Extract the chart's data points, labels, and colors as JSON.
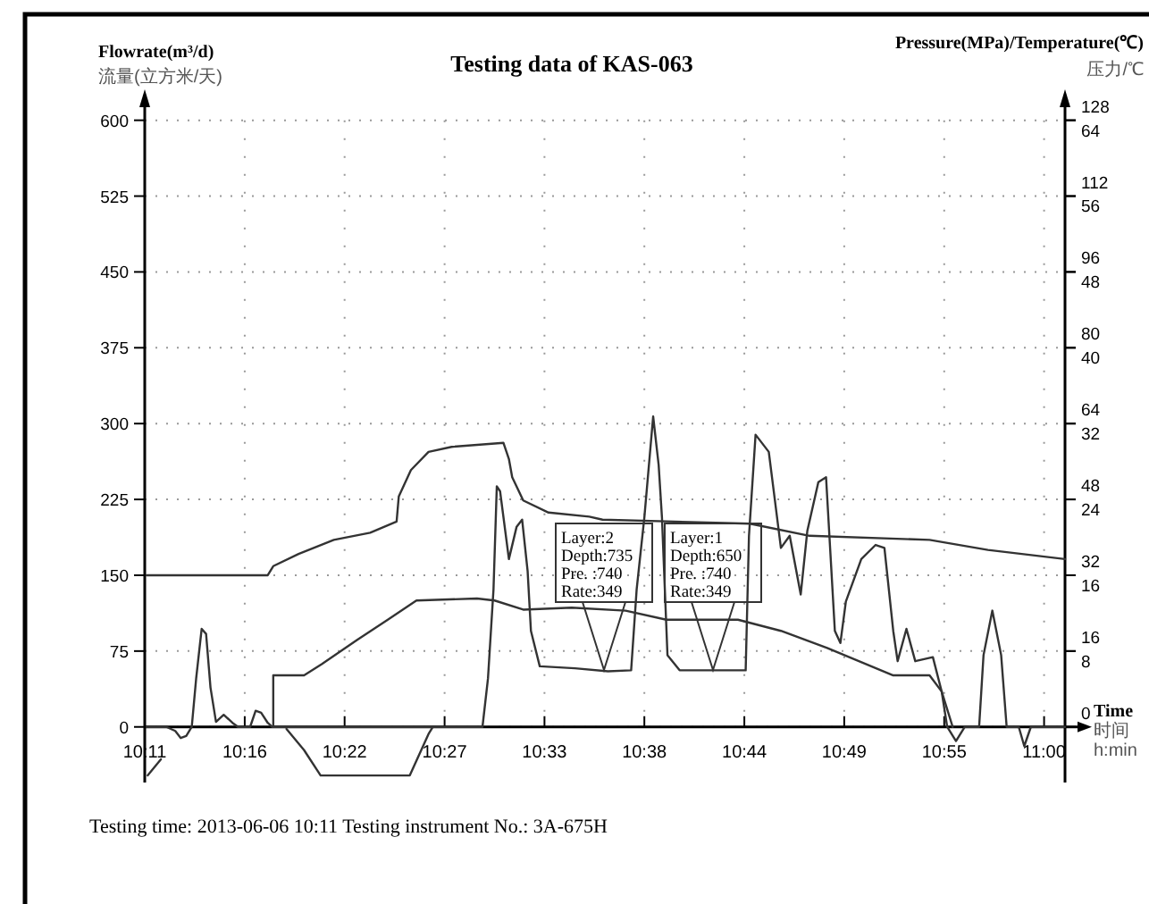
{
  "chart_data": {
    "type": "line",
    "title": "Testing data of KAS-063",
    "ylabel": "Flowrate(m³/d)\n流量(立方米/天)",
    "y2label": "Pressure(MPa)/Temperature(℃)\n压力/℃",
    "xlabel": "Time\n时间\nh:min",
    "xlim": [
      10.1833,
      11.019
    ],
    "xticks": [
      {
        "value": 10.1833,
        "label": "10:11"
      },
      {
        "value": 10.2741,
        "label": "10:16"
      },
      {
        "value": 10.3648,
        "label": "10:22"
      },
      {
        "value": 10.4556,
        "label": "10:27"
      },
      {
        "value": 10.5463,
        "label": "10:33"
      },
      {
        "value": 10.637,
        "label": "10:38"
      },
      {
        "value": 10.7278,
        "label": "10:44"
      },
      {
        "value": 10.8185,
        "label": "10:49"
      },
      {
        "value": 10.9093,
        "label": "10:55"
      },
      {
        "value": 11.0,
        "label": "11:00"
      }
    ],
    "ylim": [
      -55,
      620
    ],
    "yticks": [
      0,
      75,
      150,
      225,
      300,
      375,
      450,
      525,
      600
    ],
    "y2lim": [
      -11.73,
      132.27
    ],
    "y2ticks": [
      0,
      16,
      32,
      48,
      64,
      80,
      96,
      112,
      128
    ],
    "y3lim": [
      -5.87,
      66.13
    ],
    "y3ticks": [
      8,
      16,
      24,
      32,
      40,
      48,
      56,
      64
    ],
    "grid": true,
    "series": [
      {
        "color": "#333333",
        "x": [
          10.185,
          10.203,
          10.211,
          10.216,
          10.221,
          10.226,
          10.23,
          10.235,
          10.239,
          10.243,
          10.248,
          10.255,
          10.263,
          10.268,
          10.279,
          10.284,
          10.289,
          10.295,
          10.299,
          10.49,
          10.495,
          10.5,
          10.503,
          10.506,
          10.514,
          10.521,
          10.526,
          10.531,
          10.534,
          10.542,
          10.574,
          10.604,
          10.625,
          10.63,
          10.637,
          10.645,
          10.65,
          10.653,
          10.658,
          10.669,
          10.717,
          10.729,
          10.732,
          10.738,
          10.75,
          10.761,
          10.769,
          10.779,
          10.785,
          10.795,
          10.802,
          10.81,
          10.815,
          10.82,
          10.834,
          10.847,
          10.855,
          10.863,
          10.867,
          10.875,
          10.883,
          10.899,
          10.907,
          10.912,
          10.92,
          10.928,
          10.941,
          10.945,
          10.953,
          10.961,
          10.966,
          10.977,
          10.982,
          10.988,
          11.019
        ],
        "values": [
          0,
          0,
          -4,
          -11,
          -9,
          0,
          48,
          97,
          92,
          39,
          5,
          12,
          4,
          0,
          0,
          16,
          14,
          4,
          0,
          0,
          48,
          136,
          238,
          233,
          166,
          198,
          205,
          154,
          95,
          60,
          58,
          55,
          56,
          136,
          207,
          307,
          259,
          207,
          71,
          56,
          56,
          56,
          189,
          289,
          272,
          177,
          189,
          131,
          194,
          242,
          247,
          95,
          83,
          124,
          166,
          180,
          177,
          95,
          65,
          97,
          65,
          69,
          35,
          0,
          -14,
          0,
          0,
          71,
          115,
          71,
          0,
          0,
          -19,
          0,
          0
        ]
      },
      {
        "color": "#333333",
        "x": [
          10.3,
          10.3,
          10.328,
          10.344,
          10.376,
          10.404,
          10.43,
          10.485,
          10.501,
          10.527,
          10.571,
          10.62,
          10.657,
          10.722,
          10.761,
          10.803,
          10.863,
          10.896,
          10.907,
          10.917
        ],
        "values": [
          0,
          51,
          51,
          62,
          86,
          106,
          125,
          127,
          125,
          116,
          118,
          115,
          106,
          106,
          95,
          78,
          51,
          51,
          35,
          0
        ]
      },
      {
        "color": "#333333",
        "x": [
          10.185,
          10.295,
          10.3,
          10.323,
          10.355,
          10.388,
          10.412,
          10.414,
          10.425,
          10.441,
          10.462,
          10.509,
          10.514,
          10.517,
          10.527,
          10.55,
          10.587,
          10.599,
          10.733,
          10.787,
          10.896,
          10.949,
          11.019
        ],
        "values": [
          150,
          150,
          159,
          171,
          185,
          192,
          203,
          228,
          254,
          272,
          277,
          281,
          265,
          247,
          224,
          212,
          208,
          205,
          201,
          189,
          185,
          175,
          166
        ]
      },
      {
        "color": "#333333",
        "x": [
          10.186,
          10.198
        ],
        "values": [
          -48,
          -32
        ]
      },
      {
        "color": "#333333",
        "x": [
          10.312,
          10.328,
          10.343,
          10.424,
          10.441,
          10.445
        ],
        "values": [
          -2,
          -23,
          -48,
          -48,
          -7,
          0
        ]
      }
    ],
    "annotations": [
      "Layer:2\nDepth:735\nPre. :740\nRate:349",
      "Layer:1\nDepth:650\nPre. :740\nRate:349",
      "Testing time: 2013-06-06 10:11 Testing instrument No.: 3A-675H"
    ]
  }
}
